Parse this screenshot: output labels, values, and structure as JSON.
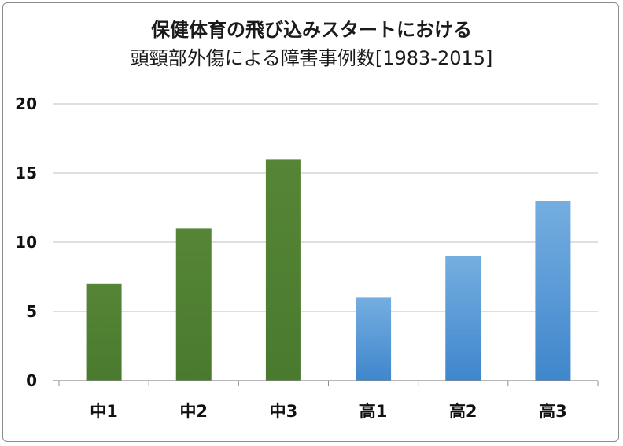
{
  "chart_data": {
    "type": "bar",
    "title_line1": "保健体育の飛び込みスタートにおける",
    "title_line2": "頭頸部外傷による障害事例数[1983-2015]",
    "xlabel": "",
    "ylabel": "",
    "categories": [
      "中1",
      "中2",
      "中3",
      "高1",
      "高2",
      "高3"
    ],
    "values": [
      7,
      11,
      16,
      6,
      9,
      13
    ],
    "ylim": [
      0,
      20
    ],
    "yticks": [
      "0",
      "5",
      "10",
      "15",
      "20"
    ],
    "grid": true,
    "legend": "none",
    "colors": [
      "#548235",
      "#548235",
      "#548235",
      "#5b9bd5",
      "#5b9bd5",
      "#5b9bd5"
    ]
  }
}
